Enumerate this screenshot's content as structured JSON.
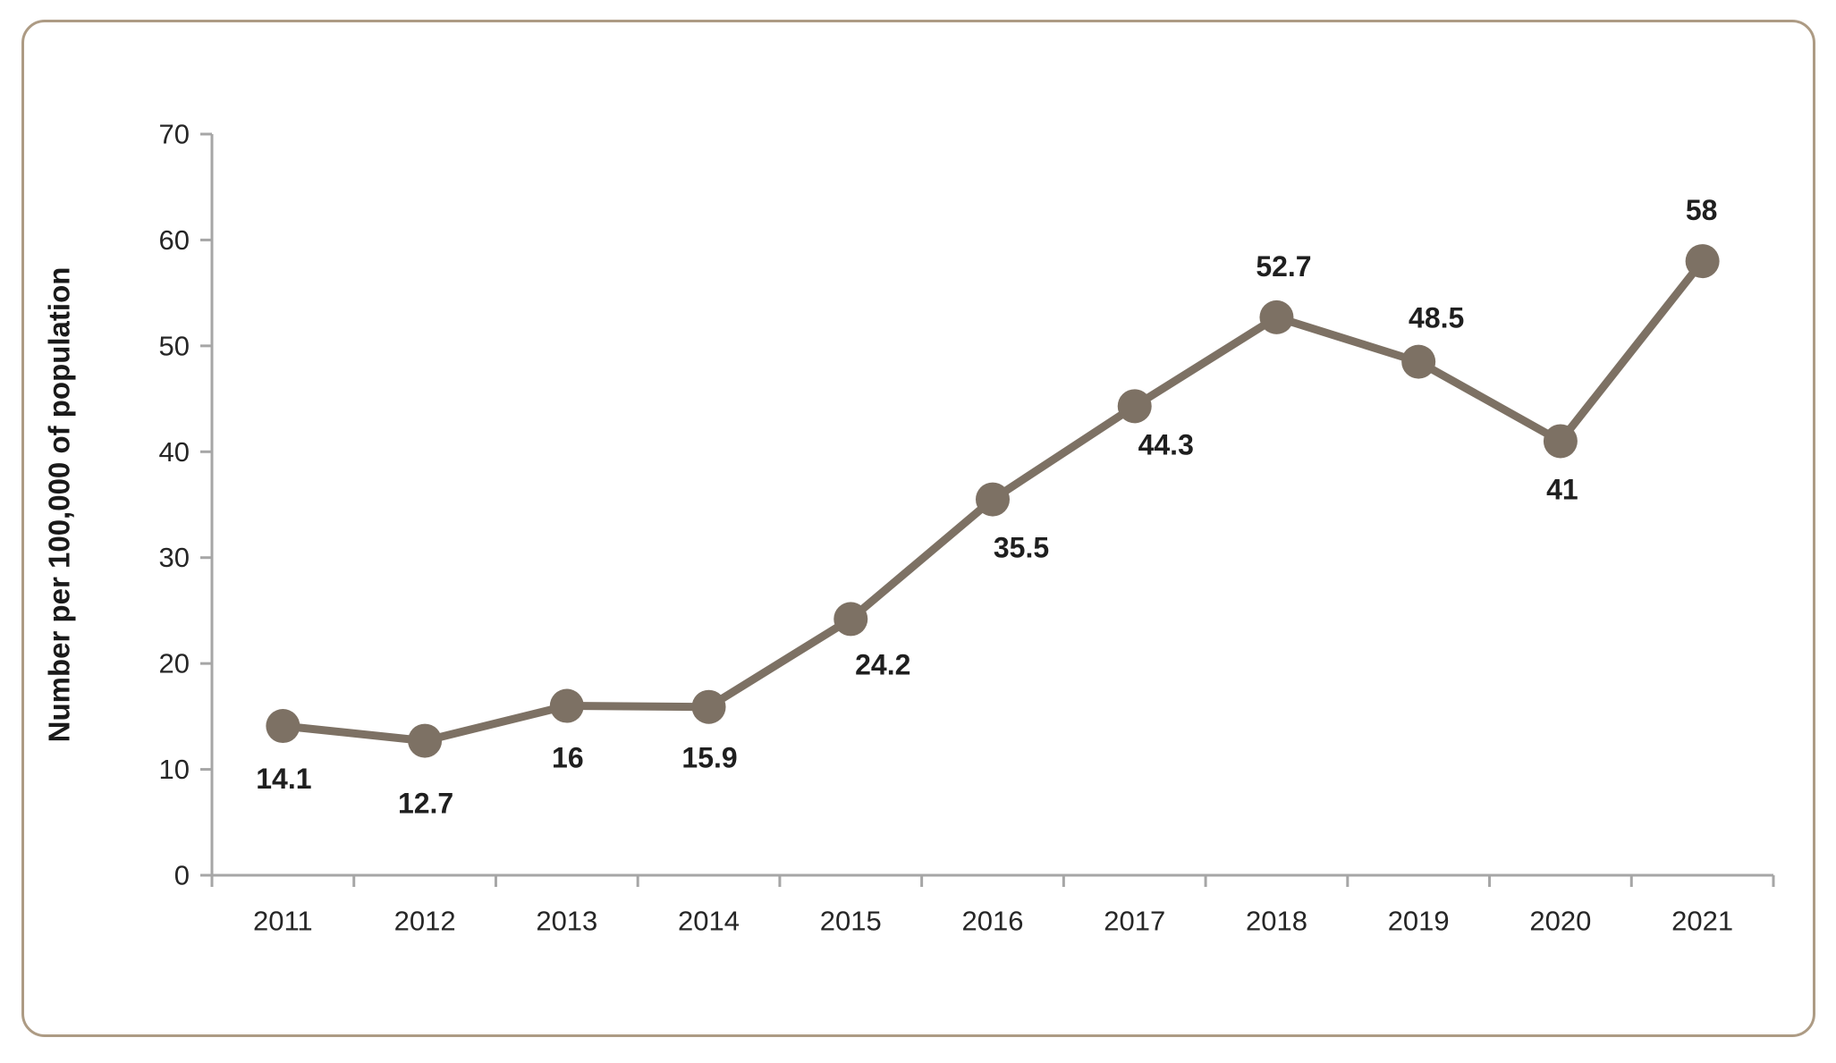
{
  "card": {
    "type": "chart-panel"
  },
  "chart_data": {
    "type": "line",
    "title": "",
    "ylabel": "Number per 100,000 of population",
    "xlabel": "",
    "categories": [
      "2011",
      "2012",
      "2013",
      "2014",
      "2015",
      "2016",
      "2017",
      "2018",
      "2019",
      "2020",
      "2021"
    ],
    "series": [
      {
        "name": "Number per 100,000 of population",
        "values": [
          14.1,
          12.7,
          16,
          15.9,
          24.2,
          35.5,
          44.3,
          52.7,
          48.5,
          41,
          58
        ],
        "point_labels": [
          "14.1",
          "12.7",
          "16",
          "15.9",
          "24.2",
          "35.5",
          "44.3",
          "52.7",
          "48.5",
          "41",
          "58"
        ],
        "label_offsets": [
          [
            1,
            59
          ],
          [
            1,
            70
          ],
          [
            1,
            58
          ],
          [
            1,
            57
          ],
          [
            36,
            51
          ],
          [
            32,
            54
          ],
          [
            35,
            43
          ],
          [
            8,
            -57
          ],
          [
            20,
            -49
          ],
          [
            2,
            54
          ],
          [
            -1,
            -57
          ]
        ]
      }
    ],
    "ylim": [
      0,
      70
    ],
    "yticks": [
      0,
      10,
      20,
      30,
      40,
      50,
      60,
      70
    ],
    "grid": false,
    "legend_position": "none",
    "colors": {
      "line": "#7d7164",
      "marker": "#7d7164",
      "axis": "#a6a6a6",
      "tick_label": "#262626",
      "data_label": "#1f1f1f",
      "axis_title": "#1a1a1a",
      "card_border": "#ad9b84",
      "background": "#ffffff"
    }
  }
}
